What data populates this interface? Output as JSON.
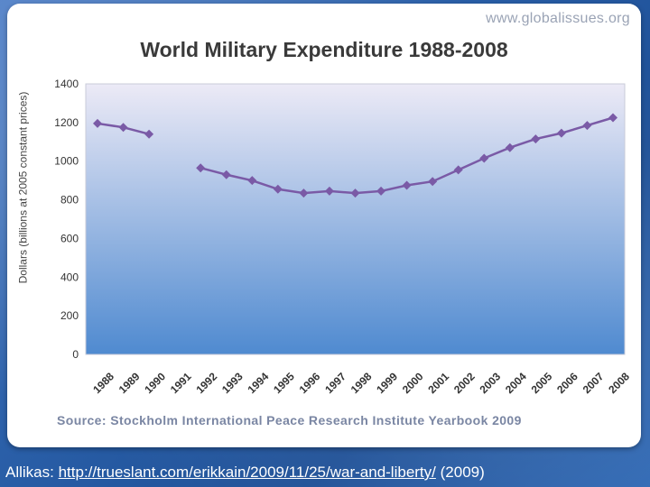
{
  "site": "www.globalissues.org",
  "source": "Source: Stockholm International Peace Research Institute Yearbook 2009",
  "footer": {
    "prefix": "Allikas:",
    "link": "http://trueslant.com/erikkain/2009/11/25/war-and-liberty/",
    "suffix": "(2009)"
  },
  "colors": {
    "line": "#7a5aa6",
    "plot_top": "#eceaf6",
    "plot_bottom": "#4f8ad0"
  },
  "chart_data": {
    "type": "line",
    "title": "World Military Expenditure 1988-2008",
    "ylabel": "Dollars (billions at 2005 constant prices)",
    "xlabel": "",
    "ylim": [
      0,
      1400
    ],
    "yticks": [
      0,
      200,
      400,
      600,
      800,
      1000,
      1200,
      1400
    ],
    "grid": false,
    "categories": [
      "1988",
      "1989",
      "1990",
      "1991",
      "1992",
      "1993",
      "1994",
      "1995",
      "1996",
      "1997",
      "1998",
      "1999",
      "2000",
      "2001",
      "2002",
      "2003",
      "2004",
      "2005",
      "2006",
      "2007",
      "2008"
    ],
    "values": [
      1195,
      1175,
      1140,
      null,
      965,
      930,
      900,
      855,
      835,
      845,
      835,
      845,
      875,
      895,
      955,
      1015,
      1070,
      1115,
      1145,
      1185,
      1225
    ]
  }
}
